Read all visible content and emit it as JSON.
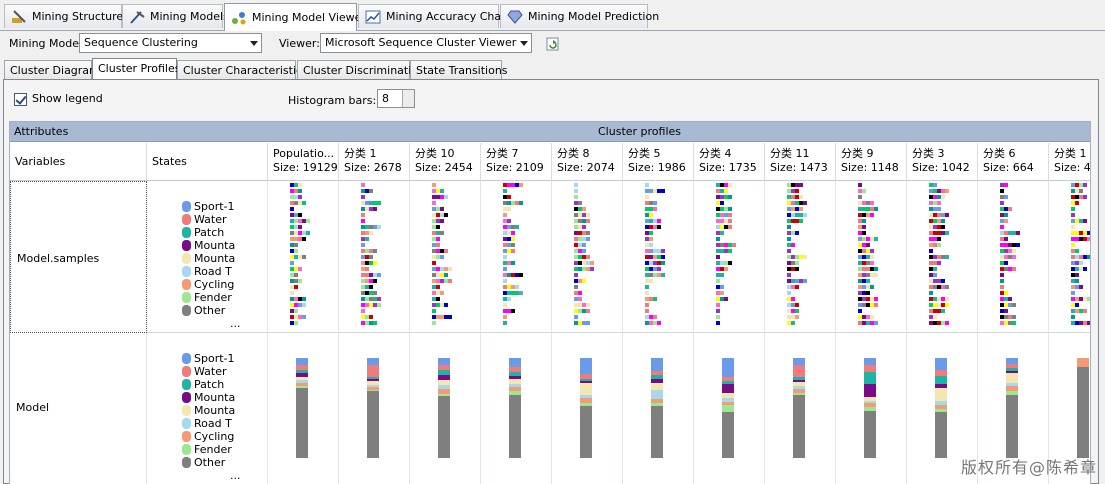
{
  "main_tabs": [
    {
      "label": "Mining Structure",
      "icon": "mining-structure-icon"
    },
    {
      "label": "Mining Models",
      "icon": "mining-models-icon"
    },
    {
      "label": "Mining Model Viewer",
      "icon": "mining-model-viewer-icon"
    },
    {
      "label": "Mining Accuracy Chart",
      "icon": "accuracy-chart-icon"
    },
    {
      "label": "Mining Model Prediction",
      "icon": "prediction-icon"
    }
  ],
  "selectors": {
    "mining_model_label": "Mining Model:",
    "mining_model_value": "Sequence Clustering",
    "viewer_label": "Viewer:",
    "viewer_value": "Microsoft Sequence Cluster Viewer"
  },
  "sub_tabs": [
    "Cluster Diagram",
    "Cluster Profiles",
    "Cluster Characteristics",
    "Cluster Discrimination",
    "State Transitions"
  ],
  "options": {
    "show_legend_label": "Show legend",
    "show_legend_checked": true,
    "histogram_label": "Histogram bars:",
    "histogram_value": "8"
  },
  "grid": {
    "attributes_header": "Attributes",
    "profiles_header": "Cluster profiles",
    "variables_header": "Variables",
    "states_header": "States",
    "clusters": [
      {
        "name": "Populatio...",
        "size": "Size: 19129"
      },
      {
        "name": "分类 1",
        "size": "Size: 2678"
      },
      {
        "name": "分类 10",
        "size": "Size: 2454"
      },
      {
        "name": "分类 7",
        "size": "Size: 2109"
      },
      {
        "name": "分类 8",
        "size": "Size: 2074"
      },
      {
        "name": "分类 5",
        "size": "Size: 1986"
      },
      {
        "name": "分类 4",
        "size": "Size: 1735"
      },
      {
        "name": "分类 11",
        "size": "Size: 1473"
      },
      {
        "name": "分类 9",
        "size": "Size: 1148"
      },
      {
        "name": "分类 3",
        "size": "Size: 1042"
      },
      {
        "name": "分类 6",
        "size": "Size: 664"
      },
      {
        "name": "分类 1",
        "size": "Size: 4"
      }
    ],
    "rows": [
      {
        "variable": "Model.samples"
      },
      {
        "variable": "Model"
      }
    ],
    "legend": [
      {
        "label": "Sport-1",
        "color": "#6a9be8"
      },
      {
        "label": "Water",
        "color": "#f07b7b"
      },
      {
        "label": "Patch",
        "color": "#1fb3a5"
      },
      {
        "label": "Mounta",
        "color": "#7a0a86"
      },
      {
        "label": "Mounta",
        "color": "#f3e6b0"
      },
      {
        "label": "Road T",
        "color": "#a7d8ec"
      },
      {
        "label": "Cycling",
        "color": "#f59a74"
      },
      {
        "label": "Fender",
        "color": "#9be890"
      },
      {
        "label": "Other",
        "color": "#7f7f7f"
      }
    ],
    "legend_more": "...",
    "model_bars": [
      [
        [
          0.07,
          "#6a9be8"
        ],
        [
          0.05,
          "#f07b7b"
        ],
        [
          0.03,
          "#1fb3a5"
        ],
        [
          0.04,
          "#7a0a86"
        ],
        [
          0.03,
          "#f3e6b0"
        ],
        [
          0.03,
          "#a7d8ec"
        ],
        [
          0.03,
          "#f59a74"
        ],
        [
          0.02,
          "#9be890"
        ],
        [
          0.7,
          "#7f7f7f"
        ]
      ],
      [
        [
          0.07,
          "#6a9be8"
        ],
        [
          0.12,
          "#f07b7b"
        ],
        [
          0.02,
          "#1fb3a5"
        ],
        [
          0.02,
          "#7a0a86"
        ],
        [
          0.04,
          "#f3e6b0"
        ],
        [
          0.02,
          "#a7d8ec"
        ],
        [
          0.03,
          "#f59a74"
        ],
        [
          0.01,
          "#9be890"
        ],
        [
          0.67,
          "#7f7f7f"
        ]
      ],
      [
        [
          0.07,
          "#6a9be8"
        ],
        [
          0.05,
          "#f07b7b"
        ],
        [
          0.05,
          "#1fb3a5"
        ],
        [
          0.05,
          "#7a0a86"
        ],
        [
          0.05,
          "#f3e6b0"
        ],
        [
          0.04,
          "#a7d8ec"
        ],
        [
          0.05,
          "#f59a74"
        ],
        [
          0.02,
          "#9be890"
        ],
        [
          0.62,
          "#7f7f7f"
        ]
      ],
      [
        [
          0.09,
          "#6a9be8"
        ],
        [
          0.05,
          "#f07b7b"
        ],
        [
          0.04,
          "#1fb3a5"
        ],
        [
          0.03,
          "#7a0a86"
        ],
        [
          0.05,
          "#f3e6b0"
        ],
        [
          0.03,
          "#a7d8ec"
        ],
        [
          0.04,
          "#f59a74"
        ],
        [
          0.04,
          "#9be890"
        ],
        [
          0.63,
          "#7f7f7f"
        ]
      ],
      [
        [
          0.16,
          "#6a9be8"
        ],
        [
          0.05,
          "#f07b7b"
        ],
        [
          0.02,
          "#1fb3a5"
        ],
        [
          0.02,
          "#7a0a86"
        ],
        [
          0.12,
          "#f3e6b0"
        ],
        [
          0.03,
          "#a7d8ec"
        ],
        [
          0.05,
          "#f59a74"
        ],
        [
          0.03,
          "#9be890"
        ],
        [
          0.52,
          "#7f7f7f"
        ]
      ],
      [
        [
          0.13,
          "#6a9be8"
        ],
        [
          0.04,
          "#f07b7b"
        ],
        [
          0.04,
          "#1fb3a5"
        ],
        [
          0.04,
          "#7a0a86"
        ],
        [
          0.07,
          "#f3e6b0"
        ],
        [
          0.09,
          "#a7d8ec"
        ],
        [
          0.04,
          "#f59a74"
        ],
        [
          0.03,
          "#9be890"
        ],
        [
          0.52,
          "#7f7f7f"
        ]
      ],
      [
        [
          0.19,
          "#6a9be8"
        ],
        [
          0.04,
          "#f07b7b"
        ],
        [
          0.03,
          "#1fb3a5"
        ],
        [
          0.09,
          "#7a0a86"
        ],
        [
          0.05,
          "#f3e6b0"
        ],
        [
          0.04,
          "#a7d8ec"
        ],
        [
          0.03,
          "#f59a74"
        ],
        [
          0.07,
          "#9be890"
        ],
        [
          0.46,
          "#7f7f7f"
        ]
      ],
      [
        [
          0.07,
          "#6a9be8"
        ],
        [
          0.12,
          "#f07b7b"
        ],
        [
          0.03,
          "#1fb3a5"
        ],
        [
          0.02,
          "#7a0a86"
        ],
        [
          0.04,
          "#f3e6b0"
        ],
        [
          0.03,
          "#a7d8ec"
        ],
        [
          0.04,
          "#f59a74"
        ],
        [
          0.02,
          "#9be890"
        ],
        [
          0.63,
          "#7f7f7f"
        ]
      ],
      [
        [
          0.07,
          "#6a9be8"
        ],
        [
          0.07,
          "#f07b7b"
        ],
        [
          0.12,
          "#1fb3a5"
        ],
        [
          0.13,
          "#7a0a86"
        ],
        [
          0.04,
          "#f3e6b0"
        ],
        [
          0.02,
          "#a7d8ec"
        ],
        [
          0.04,
          "#f59a74"
        ],
        [
          0.04,
          "#9be890"
        ],
        [
          0.47,
          "#7f7f7f"
        ]
      ],
      [
        [
          0.12,
          "#6a9be8"
        ],
        [
          0.06,
          "#f07b7b"
        ],
        [
          0.08,
          "#1fb3a5"
        ],
        [
          0.04,
          "#7a0a86"
        ],
        [
          0.13,
          "#f3e6b0"
        ],
        [
          0.04,
          "#a7d8ec"
        ],
        [
          0.04,
          "#f59a74"
        ],
        [
          0.03,
          "#9be890"
        ],
        [
          0.46,
          "#7f7f7f"
        ]
      ],
      [
        [
          0.06,
          "#6a9be8"
        ],
        [
          0.04,
          "#f07b7b"
        ],
        [
          0.03,
          "#1fb3a5"
        ],
        [
          0.02,
          "#7a0a86"
        ],
        [
          0.1,
          "#f3e6b0"
        ],
        [
          0.03,
          "#a7d8ec"
        ],
        [
          0.05,
          "#f59a74"
        ],
        [
          0.04,
          "#9be890"
        ],
        [
          0.63,
          "#7f7f7f"
        ]
      ],
      [
        [
          0.09,
          "#f59a74"
        ],
        [
          0.91,
          "#7f7f7f"
        ]
      ]
    ]
  },
  "watermark": "版权所有@陈希章"
}
